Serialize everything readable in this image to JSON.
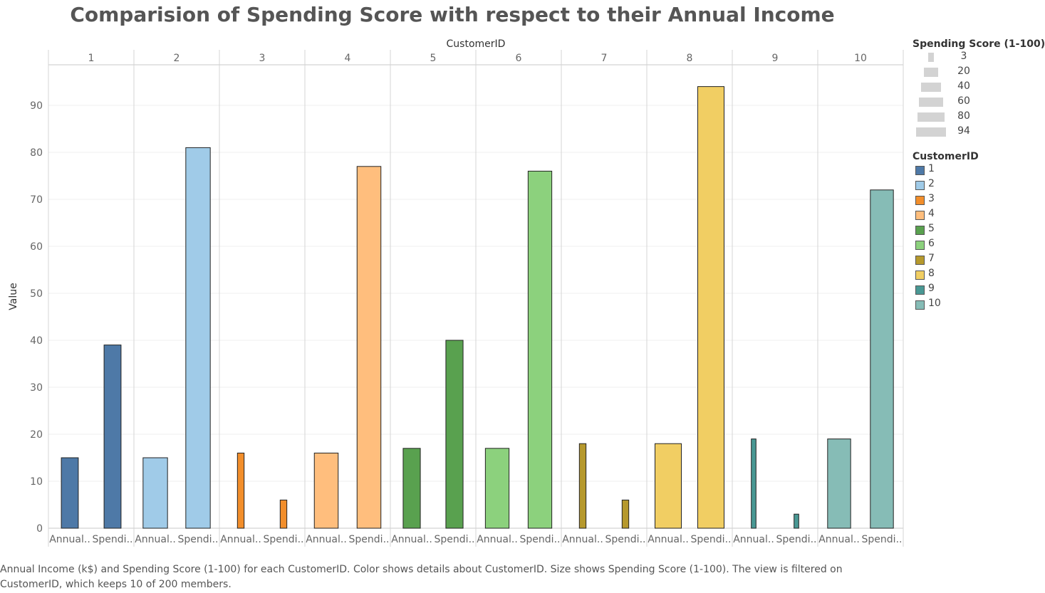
{
  "title": "Comparision of Spending Score with respect to their Annual Income",
  "caption": "Annual Income (k$) and Spending Score (1-100) for each CustomerID.  Color shows details about CustomerID.  Size shows Spending Score (1-100). The view is filtered on CustomerID, which keeps 10 of 200 members.",
  "size_legend": {
    "title": "Spending Score (1-100)",
    "items": [
      {
        "label": "3",
        "value": 3
      },
      {
        "label": "20",
        "value": 20
      },
      {
        "label": "40",
        "value": 40
      },
      {
        "label": "60",
        "value": 60
      },
      {
        "label": "80",
        "value": 80
      },
      {
        "label": "94",
        "value": 94
      }
    ]
  },
  "color_legend": {
    "title": "CustomerID",
    "items": [
      {
        "label": "1",
        "color": "#4e79a7"
      },
      {
        "label": "2",
        "color": "#a0cbe8"
      },
      {
        "label": "3",
        "color": "#f28e2b"
      },
      {
        "label": "4",
        "color": "#ffbe7d"
      },
      {
        "label": "5",
        "color": "#59a14f"
      },
      {
        "label": "6",
        "color": "#8cd17d"
      },
      {
        "label": "7",
        "color": "#b6992d"
      },
      {
        "label": "8",
        "color": "#f1ce63"
      },
      {
        "label": "9",
        "color": "#499894"
      },
      {
        "label": "10",
        "color": "#86bcb6"
      }
    ]
  },
  "chart_data": {
    "type": "bar",
    "top_axis_title": "CustomerID",
    "ylabel": "Value",
    "ylim": [
      0,
      100
    ],
    "yticks": [
      0,
      10,
      20,
      30,
      40,
      50,
      60,
      70,
      80,
      90
    ],
    "measure_labels": [
      "Annual..",
      "Spendi.."
    ],
    "measures": [
      "Annual Income (k$)",
      "Spending Score (1-100)"
    ],
    "grid": true,
    "legend_position": "right",
    "customers": [
      {
        "id": "1",
        "color": "#4e79a7",
        "annual_income": 15,
        "spending_score": 39
      },
      {
        "id": "2",
        "color": "#a0cbe8",
        "annual_income": 15,
        "spending_score": 81
      },
      {
        "id": "3",
        "color": "#f28e2b",
        "annual_income": 16,
        "spending_score": 6
      },
      {
        "id": "4",
        "color": "#ffbe7d",
        "annual_income": 16,
        "spending_score": 77
      },
      {
        "id": "5",
        "color": "#59a14f",
        "annual_income": 17,
        "spending_score": 40
      },
      {
        "id": "6",
        "color": "#8cd17d",
        "annual_income": 17,
        "spending_score": 76
      },
      {
        "id": "7",
        "color": "#b6992d",
        "annual_income": 18,
        "spending_score": 6
      },
      {
        "id": "8",
        "color": "#f1ce63",
        "annual_income": 18,
        "spending_score": 94
      },
      {
        "id": "9",
        "color": "#499894",
        "annual_income": 19,
        "spending_score": 3
      },
      {
        "id": "10",
        "color": "#86bcb6",
        "annual_income": 19,
        "spending_score": 72
      }
    ]
  }
}
